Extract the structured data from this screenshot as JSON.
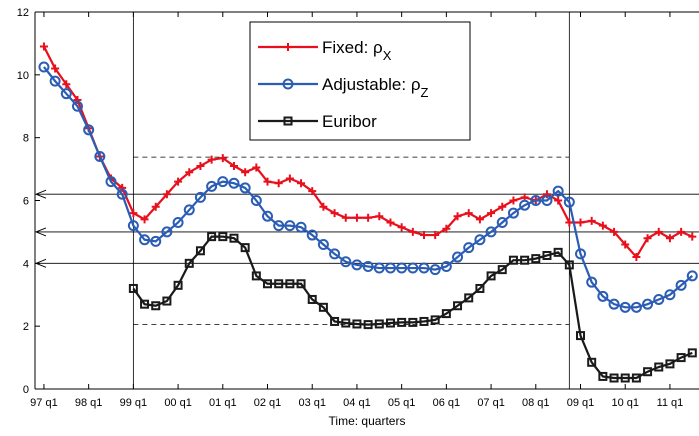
{
  "chart_data": {
    "type": "line",
    "xlabel": "Time: quarters",
    "x": [
      0,
      1,
      2,
      3,
      4,
      5,
      6,
      7,
      8,
      9,
      10,
      11,
      12,
      13,
      14,
      15,
      16,
      17,
      18,
      19,
      20,
      21,
      22,
      23,
      24,
      25,
      26,
      27,
      28,
      29,
      30,
      31,
      32,
      33,
      34,
      35,
      36,
      37,
      38,
      39,
      40,
      41,
      42,
      43,
      44,
      45,
      46,
      47,
      48,
      49,
      50,
      51,
      52,
      53,
      54,
      55,
      56,
      57,
      58
    ],
    "xlim": [
      -0.8,
      58.6
    ],
    "xticks": [
      {
        "value": 0,
        "label": "97 q1"
      },
      {
        "value": 4,
        "label": "98 q1"
      },
      {
        "value": 8,
        "label": "99 q1"
      },
      {
        "value": 12,
        "label": "00 q1"
      },
      {
        "value": 16,
        "label": "01 q1"
      },
      {
        "value": 20,
        "label": "02 q1"
      },
      {
        "value": 24,
        "label": "03 q1"
      },
      {
        "value": 28,
        "label": "04 q1"
      },
      {
        "value": 32,
        "label": "05 q1"
      },
      {
        "value": 36,
        "label": "06 q1"
      },
      {
        "value": 40,
        "label": "07 q1"
      },
      {
        "value": 44,
        "label": "08 q1"
      },
      {
        "value": 48,
        "label": "09 q1"
      },
      {
        "value": 52,
        "label": "10 q1"
      },
      {
        "value": 56,
        "label": "11 q1"
      }
    ],
    "ylim": [
      0,
      12
    ],
    "yticks": [
      0,
      2,
      4,
      6,
      8,
      10,
      12
    ],
    "series": [
      {
        "name": "Fixed: ρ",
        "subscript": "X",
        "color": "#e8101c",
        "marker": "plus",
        "values": [
          10.9,
          10.2,
          9.7,
          9.2,
          8.3,
          7.4,
          6.7,
          6.4,
          5.6,
          5.4,
          5.8,
          6.2,
          6.6,
          6.9,
          7.1,
          7.3,
          7.35,
          7.1,
          6.9,
          7.05,
          6.6,
          6.55,
          6.7,
          6.55,
          6.3,
          5.8,
          5.6,
          5.45,
          5.45,
          5.45,
          5.5,
          5.3,
          5.15,
          5.0,
          4.9,
          4.9,
          5.1,
          5.5,
          5.6,
          5.4,
          5.6,
          5.8,
          6.0,
          6.1,
          6.0,
          6.2,
          6.0,
          5.3,
          5.3,
          5.35,
          5.2,
          5.0,
          4.6,
          4.2,
          4.8,
          5.0,
          4.8,
          5.0,
          4.85
        ]
      },
      {
        "name": "Adjustable: ρ",
        "subscript": "Z",
        "color": "#2b5db5",
        "marker": "circle",
        "values": [
          10.25,
          9.8,
          9.4,
          9.0,
          8.25,
          7.4,
          6.6,
          6.2,
          5.2,
          4.75,
          4.7,
          5.0,
          5.3,
          5.7,
          6.1,
          6.45,
          6.6,
          6.55,
          6.4,
          6.0,
          5.5,
          5.2,
          5.2,
          5.15,
          4.9,
          4.6,
          4.3,
          4.05,
          3.95,
          3.9,
          3.85,
          3.85,
          3.85,
          3.85,
          3.85,
          3.8,
          3.9,
          4.2,
          4.5,
          4.75,
          5.0,
          5.3,
          5.6,
          5.85,
          6.0,
          6.0,
          6.3,
          5.95,
          4.3,
          3.4,
          2.95,
          2.7,
          2.6,
          2.6,
          2.7,
          2.85,
          3.0,
          3.3,
          3.6
        ]
      },
      {
        "name": "Euribor",
        "color": "#1a1a1a",
        "marker": "square",
        "values": [
          null,
          null,
          null,
          null,
          null,
          null,
          null,
          null,
          3.2,
          2.7,
          2.65,
          2.8,
          3.3,
          4.0,
          4.4,
          4.85,
          4.85,
          4.8,
          4.5,
          3.6,
          3.35,
          3.35,
          3.35,
          3.35,
          2.85,
          2.6,
          2.15,
          2.1,
          2.07,
          2.05,
          2.07,
          2.1,
          2.12,
          2.12,
          2.15,
          2.2,
          2.4,
          2.65,
          2.9,
          3.2,
          3.6,
          3.8,
          4.1,
          4.1,
          4.15,
          4.25,
          4.35,
          3.95,
          1.7,
          0.85,
          0.4,
          0.35,
          0.35,
          0.35,
          0.55,
          0.7,
          0.8,
          1.0,
          1.15
        ]
      }
    ],
    "vertical_lines": [
      8,
      47
    ],
    "dashed_lines": [
      7.38,
      2.05
    ],
    "arrows": [
      6.2,
      5.0,
      4.0
    ]
  }
}
